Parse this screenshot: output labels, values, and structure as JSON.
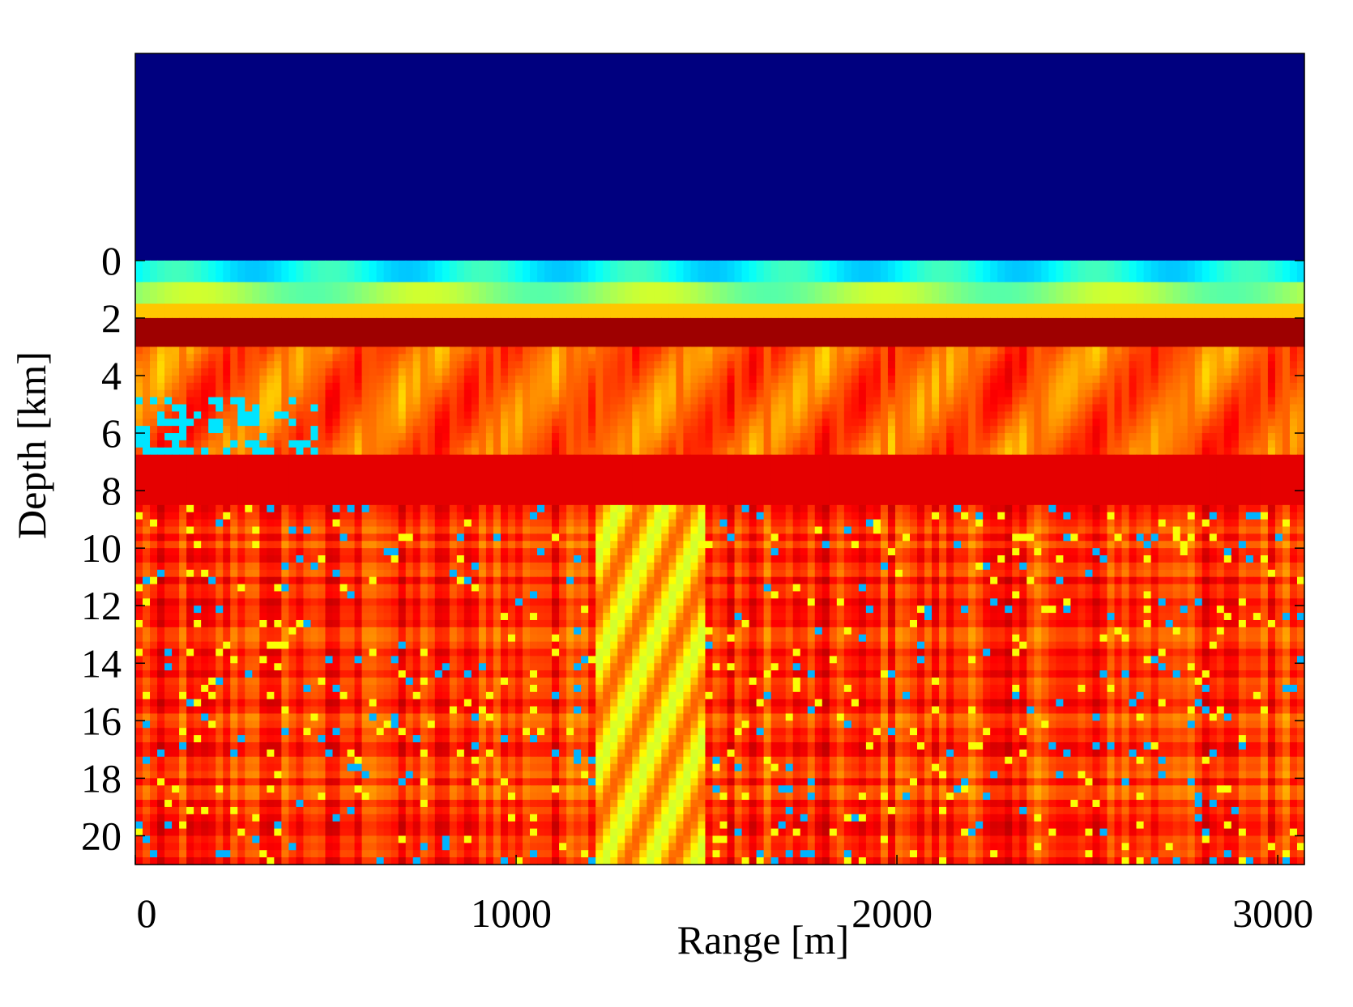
{
  "chart_data": {
    "type": "heatmap",
    "title": "",
    "xlabel": "Range [m]",
    "ylabel": "Depth [km]",
    "xlim": [
      0,
      3000
    ],
    "ylim": [
      -7.2,
      21
    ],
    "x_ticks": [
      "0",
      "1000",
      "2000",
      "3000"
    ],
    "x_tick_values": [
      0,
      1000,
      2000,
      3000
    ],
    "y_ticks": [
      "0",
      "2",
      "4",
      "6",
      "8",
      "10",
      "12",
      "14",
      "16",
      "18",
      "20"
    ],
    "y_tick_values": [
      0,
      2,
      4,
      6,
      8,
      10,
      12,
      14,
      16,
      18,
      20
    ],
    "colormap": "jet",
    "colors": {
      "above_surface": "#00007f",
      "low": "#00007f",
      "high": "#800000"
    },
    "legend": "none",
    "grid": false,
    "description_bands": [
      {
        "depth": [
          -7.2,
          0
        ],
        "level": 0.0
      },
      {
        "depth": [
          0,
          1
        ],
        "level": 0.38
      },
      {
        "depth": [
          1,
          2
        ],
        "level": 0.6
      },
      {
        "depth": [
          2,
          3
        ],
        "level": 0.95
      },
      {
        "depth": [
          3,
          8
        ],
        "level": 0.82
      },
      {
        "depth": [
          8,
          21
        ],
        "level": 0.85
      }
    ]
  }
}
